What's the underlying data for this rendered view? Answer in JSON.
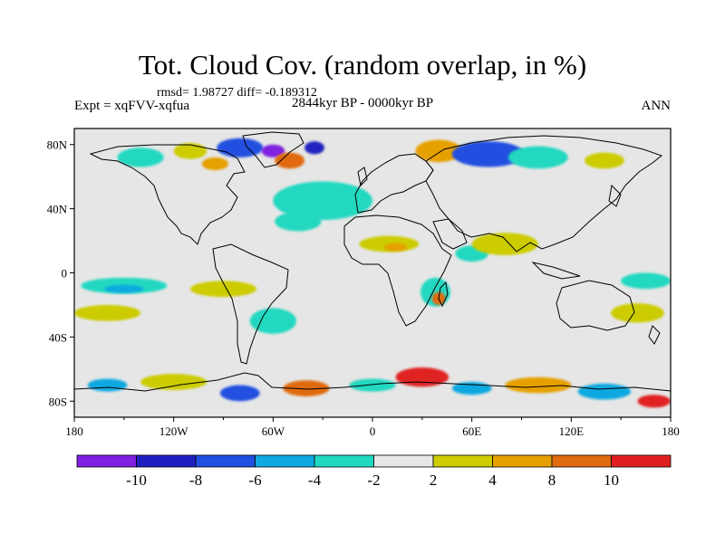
{
  "title": "Tot. Cloud Cov. (random overlap, in %)",
  "stats": "rmsd= 1.98727 diff= -0.189312",
  "experiment": "Expt = xqFVV-xqfua",
  "period": "2844kyr BP - 0000kyr BP",
  "season": "ANN",
  "colors": {
    "land_ocean_background": "#e6e6e6",
    "coastline": "#000000",
    "positive": [
      "#cccc00",
      "#e6a000",
      "#e06a10",
      "#e02020"
    ],
    "negative": [
      "#20d8c0",
      "#10a8e0",
      "#2050e0",
      "#2020c0",
      "#8020e0"
    ]
  },
  "map": {
    "projection": "cylindrical-equidistant",
    "lon_range": [
      -180,
      180
    ],
    "lat_range": [
      -90,
      90
    ],
    "x_ticks": [
      "180",
      "120W",
      "60W",
      "0",
      "60E",
      "120E",
      "180"
    ],
    "x_tick_values": [
      -180,
      -120,
      -60,
      0,
      60,
      120,
      180
    ],
    "y_ticks": [
      "80N",
      "40N",
      "0",
      "40S",
      "80S"
    ],
    "y_tick_values": [
      80,
      40,
      0,
      -40,
      -80
    ]
  },
  "colorbar": {
    "levels": [
      "-10",
      "-8",
      "-6",
      "-4",
      "-2",
      "2",
      "4",
      "8",
      "10"
    ],
    "colors": [
      "#8020e0",
      "#2020c0",
      "#2050e0",
      "#10a8e0",
      "#20d8c0",
      "#e6e6e6",
      "#cccc00",
      "#e6a000",
      "#e06a10",
      "#e02020"
    ]
  },
  "anomalies": [
    {
      "lon": -140,
      "lat": 72,
      "rx": 14,
      "ry": 6,
      "c": "#20d8c0"
    },
    {
      "lon": -110,
      "lat": 76,
      "rx": 10,
      "ry": 5,
      "c": "#cccc00"
    },
    {
      "lon": -80,
      "lat": 78,
      "rx": 14,
      "ry": 6,
      "c": "#2050e0"
    },
    {
      "lon": -60,
      "lat": 76,
      "rx": 7,
      "ry": 4,
      "c": "#8020e0"
    },
    {
      "lon": -50,
      "lat": 70,
      "rx": 9,
      "ry": 5,
      "c": "#e06a10"
    },
    {
      "lon": -35,
      "lat": 78,
      "rx": 6,
      "ry": 4,
      "c": "#2020c0"
    },
    {
      "lon": -95,
      "lat": 68,
      "rx": 8,
      "ry": 4,
      "c": "#e6a000"
    },
    {
      "lon": -30,
      "lat": 45,
      "rx": 30,
      "ry": 12,
      "c": "#20d8c0"
    },
    {
      "lon": -45,
      "lat": 32,
      "rx": 14,
      "ry": 6,
      "c": "#20d8c0"
    },
    {
      "lon": 40,
      "lat": 76,
      "rx": 14,
      "ry": 7,
      "c": "#e6a000"
    },
    {
      "lon": 70,
      "lat": 74,
      "rx": 22,
      "ry": 8,
      "c": "#2050e0"
    },
    {
      "lon": 100,
      "lat": 72,
      "rx": 18,
      "ry": 7,
      "c": "#20d8c0"
    },
    {
      "lon": 140,
      "lat": 70,
      "rx": 12,
      "ry": 5,
      "c": "#cccc00"
    },
    {
      "lon": 10,
      "lat": 18,
      "rx": 18,
      "ry": 5,
      "c": "#cccc00"
    },
    {
      "lon": 14,
      "lat": 16,
      "rx": 7,
      "ry": 2.5,
      "c": "#e6a000"
    },
    {
      "lon": 60,
      "lat": 12,
      "rx": 10,
      "ry": 5,
      "c": "#20d8c0"
    },
    {
      "lon": 80,
      "lat": 18,
      "rx": 20,
      "ry": 7,
      "c": "#cccc00"
    },
    {
      "lon": 38,
      "lat": -12,
      "rx": 9,
      "ry": 9,
      "c": "#20d8c0"
    },
    {
      "lon": 40,
      "lat": -16,
      "rx": 4,
      "ry": 4,
      "c": "#e06a10"
    },
    {
      "lon": -150,
      "lat": -8,
      "rx": 26,
      "ry": 5,
      "c": "#20d8c0"
    },
    {
      "lon": -150,
      "lat": -10,
      "rx": 12,
      "ry": 2.5,
      "c": "#10a8e0"
    },
    {
      "lon": -160,
      "lat": -25,
      "rx": 20,
      "ry": 5,
      "c": "#cccc00"
    },
    {
      "lon": -90,
      "lat": -10,
      "rx": 20,
      "ry": 5,
      "c": "#cccc00"
    },
    {
      "lon": -60,
      "lat": -30,
      "rx": 14,
      "ry": 8,
      "c": "#20d8c0"
    },
    {
      "lon": 165,
      "lat": -5,
      "rx": 15,
      "ry": 5,
      "c": "#20d8c0"
    },
    {
      "lon": 160,
      "lat": -25,
      "rx": 16,
      "ry": 6,
      "c": "#cccc00"
    },
    {
      "lon": -160,
      "lat": -70,
      "rx": 12,
      "ry": 4,
      "c": "#10a8e0"
    },
    {
      "lon": -120,
      "lat": -68,
      "rx": 20,
      "ry": 5,
      "c": "#cccc00"
    },
    {
      "lon": -80,
      "lat": -75,
      "rx": 12,
      "ry": 5,
      "c": "#2050e0"
    },
    {
      "lon": -40,
      "lat": -72,
      "rx": 14,
      "ry": 5,
      "c": "#e06a10"
    },
    {
      "lon": 0,
      "lat": -70,
      "rx": 14,
      "ry": 4,
      "c": "#20d8c0"
    },
    {
      "lon": 30,
      "lat": -65,
      "rx": 16,
      "ry": 6,
      "c": "#e02020"
    },
    {
      "lon": 60,
      "lat": -72,
      "rx": 12,
      "ry": 4,
      "c": "#10a8e0"
    },
    {
      "lon": 100,
      "lat": -70,
      "rx": 20,
      "ry": 5,
      "c": "#e6a000"
    },
    {
      "lon": 140,
      "lat": -74,
      "rx": 16,
      "ry": 5,
      "c": "#10a8e0"
    },
    {
      "lon": 170,
      "lat": -80,
      "rx": 10,
      "ry": 4,
      "c": "#e02020"
    }
  ]
}
